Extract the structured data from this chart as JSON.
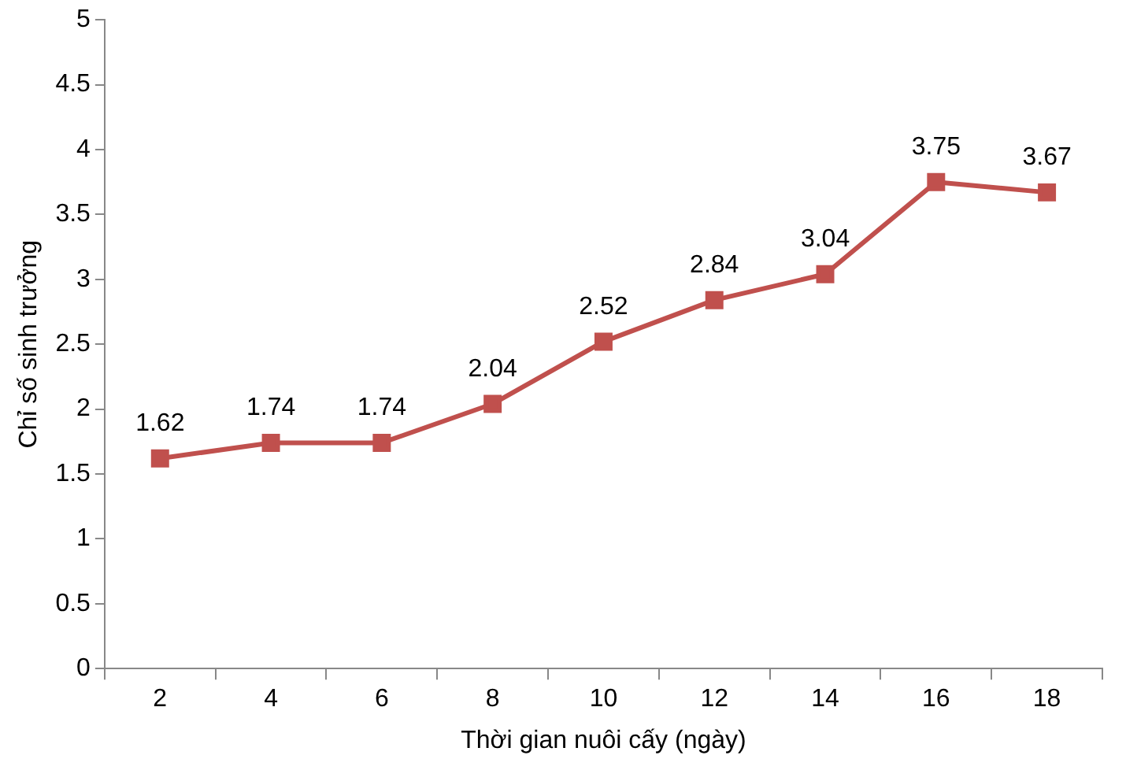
{
  "chart_data": {
    "type": "line",
    "xlabel": "Thời gian nuôi cấy (ngày)",
    "ylabel": "Chỉ số sinh trưởng",
    "categories": [
      "2",
      "4",
      "6",
      "8",
      "10",
      "12",
      "14",
      "16",
      "18"
    ],
    "series": [
      {
        "color": "#c0504d",
        "values": [
          1.62,
          1.74,
          1.74,
          2.04,
          2.52,
          2.84,
          3.04,
          3.75,
          3.67
        ]
      }
    ],
    "ylim": [
      0,
      5
    ],
    "yticks": [
      0,
      0.5,
      1,
      1.5,
      2,
      2.5,
      3,
      3.5,
      4,
      4.5,
      5
    ],
    "grid": false,
    "legend": false,
    "marker": "square",
    "line_style": "solid",
    "data_labels": true
  }
}
